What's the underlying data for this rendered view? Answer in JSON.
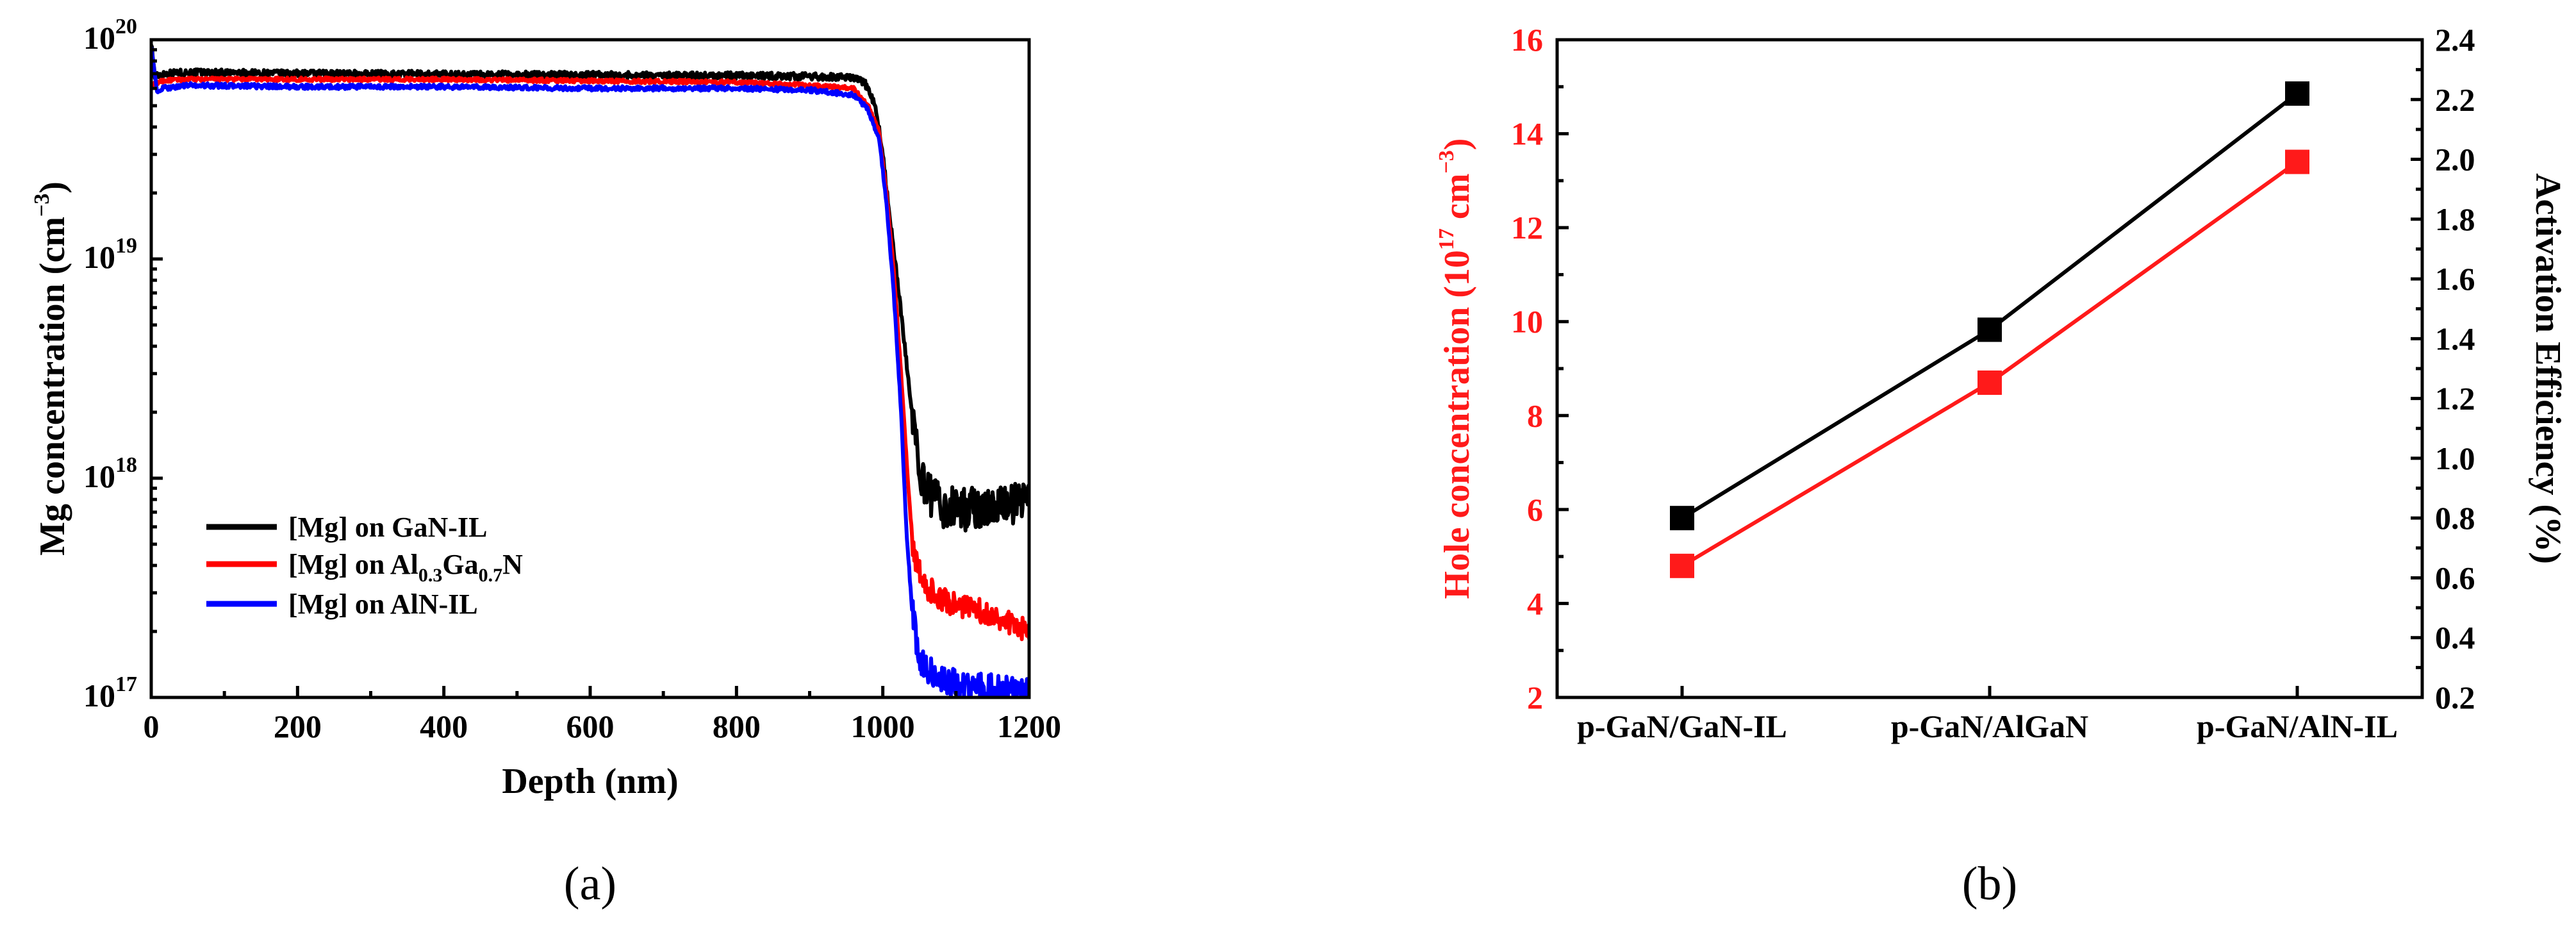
{
  "panels": {
    "a": "(a)",
    "b": "(b)"
  },
  "chart_data": [
    {
      "type": "line",
      "id": "a",
      "xlabel": "Depth (nm)",
      "ylabel": "Mg concentration",
      "ylabel_unit_base": "cm",
      "ylabel_unit_exp": "−3",
      "yscale": "log",
      "xlim": [
        0,
        1200
      ],
      "ylim": [
        1e+17,
        1e+20
      ],
      "x_ticks": [
        "0",
        "200",
        "400",
        "600",
        "800",
        "1000",
        "1200"
      ],
      "y_ticks": [
        {
          "base": "10",
          "exp": "17"
        },
        {
          "base": "10",
          "exp": "18"
        },
        {
          "base": "10",
          "exp": "19"
        },
        {
          "base": "10",
          "exp": "20"
        }
      ],
      "legend": {
        "position": "lower-left",
        "entries": [
          {
            "label": "[Mg] on GaN-IL",
            "color": "#000000"
          },
          {
            "label_parts": [
              "[Mg] on Al",
              "0.3",
              "Ga",
              "0.7",
              "N"
            ],
            "color": "#ff0000"
          },
          {
            "label": "[Mg] on AlN-IL",
            "color": "#0000ff"
          }
        ]
      },
      "series": [
        {
          "name": "[Mg] on GaN-IL",
          "color": "#000000",
          "points": [
            [
              0,
              9.8e+19
            ],
            [
              5,
              6.8e+19
            ],
            [
              15,
              7e+19
            ],
            [
              50,
              7.1e+19
            ],
            [
              200,
              7e+19
            ],
            [
              400,
              6.95e+19
            ],
            [
              600,
              6.9e+19
            ],
            [
              800,
              6.85e+19
            ],
            [
              900,
              6.8e+19
            ],
            [
              960,
              6.7e+19
            ],
            [
              975,
              6.4e+19
            ],
            [
              990,
              5e+19
            ],
            [
              1000,
              3e+19
            ],
            [
              1010,
              1.5e+19
            ],
            [
              1020,
              8e+18
            ],
            [
              1030,
              4e+18
            ],
            [
              1040,
              2e+18
            ],
            [
              1050,
              1.1e+18
            ],
            [
              1060,
              8.5e+17
            ],
            [
              1080,
              7.5e+17
            ],
            [
              1100,
              7.2e+17
            ],
            [
              1130,
              7.3e+17
            ],
            [
              1160,
              7.6e+17
            ],
            [
              1200,
              7.9e+17
            ]
          ],
          "noise": 0.09
        },
        {
          "name": "[Mg] on Al0.3Ga0.7N",
          "color": "#ff0000",
          "points": [
            [
              0,
              6.2e+19
            ],
            [
              15,
              6.5e+19
            ],
            [
              50,
              6.6e+19
            ],
            [
              200,
              6.6e+19
            ],
            [
              400,
              6.6e+19
            ],
            [
              600,
              6.5e+19
            ],
            [
              800,
              6.4e+19
            ],
            [
              900,
              6.2e+19
            ],
            [
              960,
              6e+19
            ],
            [
              980,
              5e+19
            ],
            [
              995,
              3.8e+19
            ],
            [
              1005,
              2e+19
            ],
            [
              1015,
              9e+18
            ],
            [
              1025,
              3e+18
            ],
            [
              1035,
              9e+17
            ],
            [
              1042,
              4.5e+17
            ],
            [
              1055,
              3.3e+17
            ],
            [
              1080,
              2.8e+17
            ],
            [
              1110,
              2.6e+17
            ],
            [
              1150,
              2.4e+17
            ],
            [
              1200,
              2e+17
            ]
          ],
          "noise": 0.05
        },
        {
          "name": "[Mg] on AlN-IL",
          "color": "#0000ff",
          "points": [
            [
              0,
              9.5e+19
            ],
            [
              8,
              5.7e+19
            ],
            [
              15,
              6e+19
            ],
            [
              50,
              6.2e+19
            ],
            [
              200,
              6.1e+19
            ],
            [
              400,
              6.1e+19
            ],
            [
              600,
              6e+19
            ],
            [
              800,
              6e+19
            ],
            [
              900,
              5.9e+19
            ],
            [
              960,
              5.6e+19
            ],
            [
              980,
              4.8e+19
            ],
            [
              995,
              3.5e+19
            ],
            [
              1005,
              1.8e+19
            ],
            [
              1015,
              7e+18
            ],
            [
              1025,
              2e+18
            ],
            [
              1032,
              6e+17
            ],
            [
              1040,
              2.5e+17
            ],
            [
              1050,
              1.5e+17
            ],
            [
              1070,
              1.25e+17
            ],
            [
              1100,
              1.15e+17
            ],
            [
              1150,
              1.1e+17
            ],
            [
              1200,
              1.05e+17
            ]
          ],
          "noise": 0.06
        }
      ]
    },
    {
      "type": "line",
      "id": "b",
      "categories": [
        "p-GaN/GaN-IL",
        "p-GaN/AlGaN",
        "p-GaN/AlN-IL"
      ],
      "ylabel_left_prefix": "Hole concentration (10",
      "ylabel_left_exp": "17",
      "ylabel_left_unit": " cm",
      "ylabel_left_unit_exp": "−3",
      "ylabel_left_close": ")",
      "ylabel_right": "Activation Efficiency (%)",
      "ylim_left": [
        2,
        16
      ],
      "ylim_right": [
        0.2,
        2.4
      ],
      "yticks_left": [
        "2",
        "4",
        "6",
        "8",
        "10",
        "12",
        "14",
        "16"
      ],
      "yticks_right": [
        "0.2",
        "0.4",
        "0.6",
        "0.8",
        "1.0",
        "1.2",
        "1.4",
        "1.6",
        "1.8",
        "2.0",
        "2.2",
        "2.4"
      ],
      "series": [
        {
          "name": "Hole concentration",
          "axis": "left",
          "color": "#ff1a1a",
          "values": [
            4.8,
            8.7,
            13.4
          ]
        },
        {
          "name": "Activation Efficiency",
          "axis": "right",
          "color": "#000000",
          "values": [
            0.8,
            1.43,
            2.22
          ]
        }
      ]
    }
  ]
}
